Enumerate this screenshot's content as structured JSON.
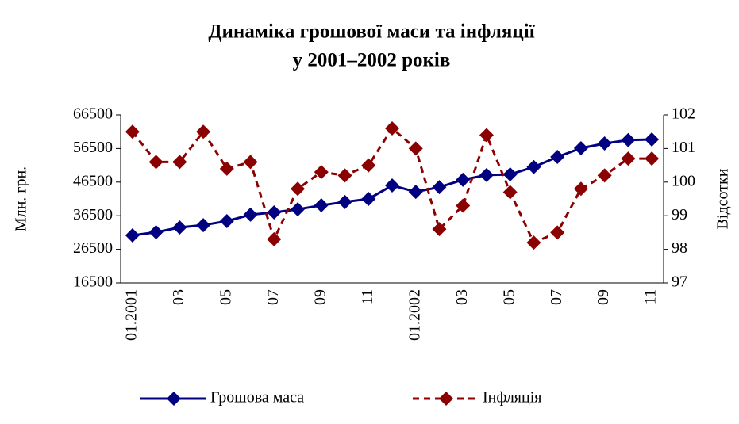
{
  "chart_data": {
    "type": "line",
    "title": [
      "Динаміка грошової  маси та інфляції",
      "у 2001–2002  років"
    ],
    "y_label": "Млн. грн.",
    "y2_label": "Відсотки",
    "categories": [
      "01.2001",
      null,
      "03",
      null,
      "05",
      null,
      "07",
      null,
      "09",
      null,
      "11",
      null,
      "01.2002",
      null,
      "03",
      null,
      "05",
      null,
      "07",
      null,
      "09",
      null,
      "11"
    ],
    "series": [
      {
        "name": "Грошова маса",
        "color": "#000080",
        "style": "solid",
        "values": [
          30650,
          31600,
          33000,
          33700,
          34900,
          36800,
          37500,
          38400,
          39600,
          40600,
          41500,
          45500,
          43600,
          45000,
          47200,
          48600,
          48800,
          51000,
          54000,
          56600,
          58000,
          59000,
          59200
        ]
      },
      {
        "name": "Інфляція",
        "color": "#8b0000",
        "style": "dashed",
        "axis": "y2",
        "values": [
          101.5,
          100.6,
          100.6,
          101.5,
          100.4,
          100.6,
          98.3,
          99.8,
          100.3,
          100.2,
          100.5,
          101.6,
          101.0,
          98.6,
          99.3,
          101.4,
          99.7,
          98.2,
          98.5,
          99.8,
          100.2,
          100.7,
          100.7
        ]
      }
    ],
    "ylim": [
      16500,
      66500
    ],
    "yticks": [
      16500,
      26500,
      36500,
      46500,
      56500,
      66500
    ],
    "y2lim": [
      97,
      102
    ],
    "y2ticks": [
      97,
      98,
      99,
      100,
      101,
      102
    ],
    "legend": "bottom"
  }
}
